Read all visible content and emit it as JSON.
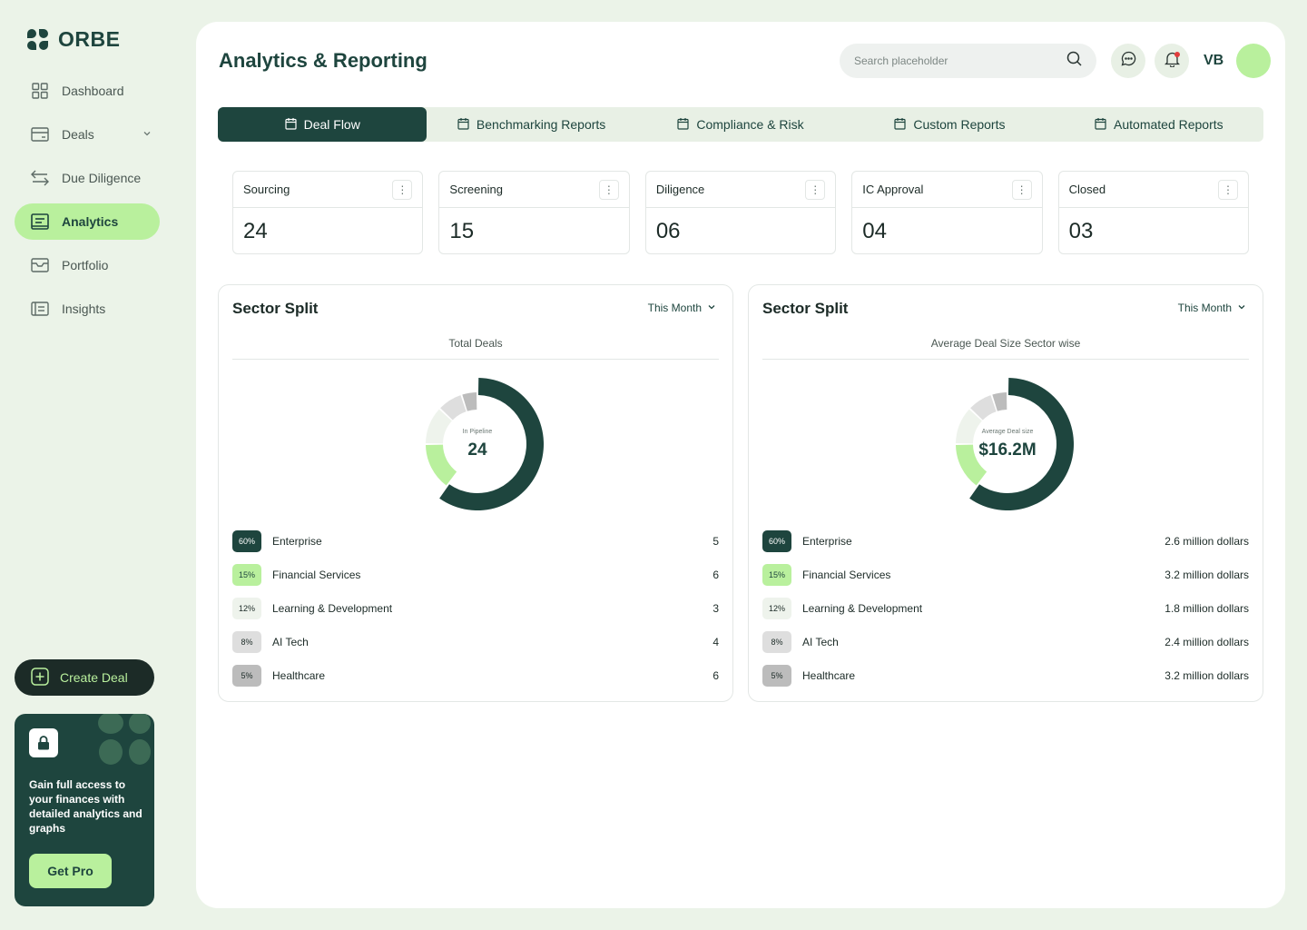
{
  "brand": {
    "name": "ORBE"
  },
  "sidebar": {
    "items": [
      {
        "label": "Dashboard",
        "icon": "dashboard-icon"
      },
      {
        "label": "Deals",
        "icon": "deals-icon"
      },
      {
        "label": "Due Diligence",
        "icon": "arrows-icon"
      },
      {
        "label": "Analytics",
        "icon": "analytics-icon"
      },
      {
        "label": "Portfolio",
        "icon": "portfolio-icon"
      },
      {
        "label": "Insights",
        "icon": "insights-icon"
      }
    ],
    "create_deal_label": "Create Deal",
    "promo": {
      "text": "Gain full access to your finances with detailed analytics and graphs",
      "button_label": "Get Pro"
    }
  },
  "header": {
    "title": "Analytics & Reporting",
    "search_placeholder": "Search placeholder",
    "initials": "VB"
  },
  "tabs": [
    {
      "label": "Deal Flow"
    },
    {
      "label": "Benchmarking Reports"
    },
    {
      "label": "Compliance & Risk"
    },
    {
      "label": "Custom Reports"
    },
    {
      "label": "Automated Reports"
    }
  ],
  "stats": [
    {
      "label": "Sourcing",
      "value": "24"
    },
    {
      "label": "Screening",
      "value": "15"
    },
    {
      "label": "Diligence",
      "value": "06"
    },
    {
      "label": "IC Approval",
      "value": "04"
    },
    {
      "label": "Closed",
      "value": "03"
    }
  ],
  "colors": {
    "enterprise": "#1e453e",
    "financial": "#b9f09d",
    "learning": "#eef3ec",
    "ai": "#dedede",
    "health": "#bcbcbc"
  },
  "cards": [
    {
      "title": "Sector Split",
      "filter": "This Month",
      "subtitle": "Total Deals",
      "center_label": "In Pipeline",
      "center_value": "24",
      "rows": [
        {
          "pct": "60%",
          "name": "Enterprise",
          "value": "5"
        },
        {
          "pct": "15%",
          "name": "Financial Services",
          "value": "6"
        },
        {
          "pct": "12%",
          "name": "Learning & Development",
          "value": "3"
        },
        {
          "pct": "8%",
          "name": "AI Tech",
          "value": "4"
        },
        {
          "pct": "5%",
          "name": "Healthcare",
          "value": "6"
        }
      ]
    },
    {
      "title": "Sector Split",
      "filter": "This Month",
      "subtitle": "Average Deal Size Sector wise",
      "center_label": "Average Deal size",
      "center_value": "$16.2M",
      "rows": [
        {
          "pct": "60%",
          "name": "Enterprise",
          "value": "2.6 million dollars"
        },
        {
          "pct": "15%",
          "name": "Financial Services",
          "value": "3.2 million dollars"
        },
        {
          "pct": "12%",
          "name": "Learning & Development",
          "value": "1.8 million dollars"
        },
        {
          "pct": "8%",
          "name": "AI Tech",
          "value": "2.4 million dollars"
        },
        {
          "pct": "5%",
          "name": "Healthcare",
          "value": "3.2 million dollars"
        }
      ]
    }
  ],
  "chart_data": [
    {
      "type": "pie",
      "title": "Sector Split",
      "subtitle": "Total Deals",
      "categories": [
        "Enterprise",
        "Financial Services",
        "Learning & Development",
        "AI Tech",
        "Healthcare"
      ],
      "values": [
        60,
        15,
        12,
        8,
        5
      ]
    },
    {
      "type": "pie",
      "title": "Sector Split",
      "subtitle": "Average Deal Size Sector wise",
      "categories": [
        "Enterprise",
        "Financial Services",
        "Learning & Development",
        "AI Tech",
        "Healthcare"
      ],
      "values": [
        60,
        15,
        12,
        8,
        5
      ]
    }
  ]
}
